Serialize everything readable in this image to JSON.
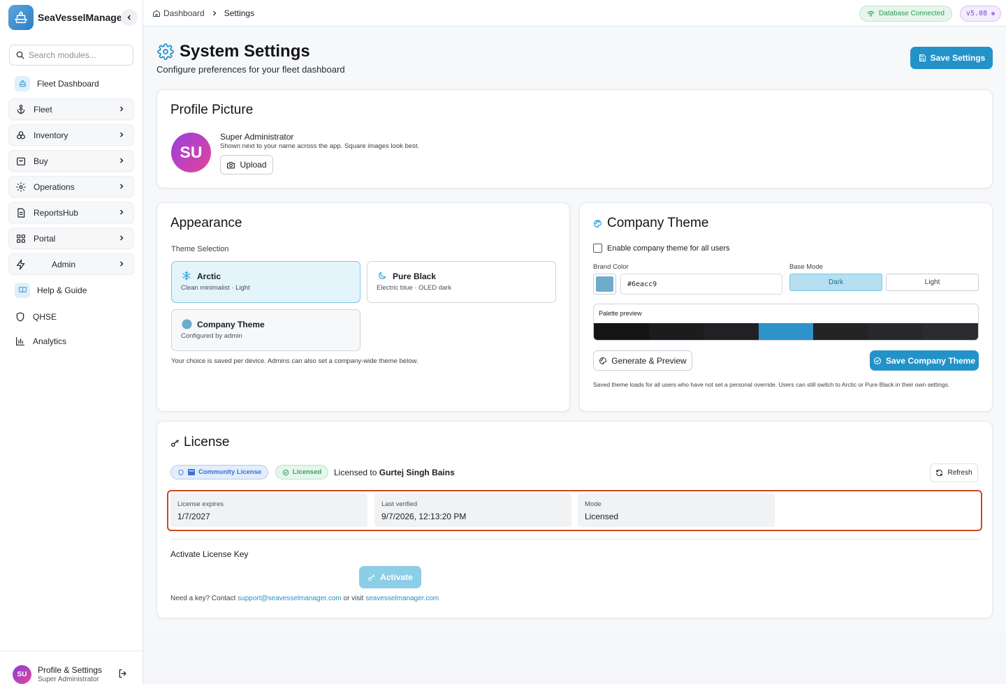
{
  "app": {
    "name": "SeaVesselManager"
  },
  "sidebar": {
    "search_placeholder": "Search modules...",
    "items": [
      {
        "label": "Fleet Dashboard"
      },
      {
        "label": "Fleet"
      },
      {
        "label": "Inventory"
      },
      {
        "label": "Buy"
      },
      {
        "label": "Operations"
      },
      {
        "label": "ReportsHub"
      },
      {
        "label": "Portal"
      },
      {
        "label": "Admin"
      },
      {
        "label": "Help & Guide"
      },
      {
        "label": "QHSE"
      },
      {
        "label": "Analytics"
      }
    ],
    "footer": {
      "avatar_initials": "SU",
      "name": "Profile & Settings",
      "role": "Super Administrator"
    }
  },
  "topbar": {
    "breadcrumb": [
      "Dashboard",
      "Settings"
    ],
    "db_status": "Database Connected",
    "version": "v5.08"
  },
  "page": {
    "title": "System Settings",
    "subtitle": "Configure preferences for your fleet dashboard",
    "save_label": "Save Settings"
  },
  "profile": {
    "title": "Profile Picture",
    "initials": "SU",
    "name": "Super Administrator",
    "hint": "Shown next to your name across the app. Square images look best.",
    "upload_label": "Upload"
  },
  "appearance": {
    "title": "Appearance",
    "theme_label": "Theme Selection",
    "options": [
      {
        "name": "Arctic",
        "desc": "Clean minimalist · Light"
      },
      {
        "name": "Pure Black",
        "desc": "Electric blue · OLED dark"
      },
      {
        "name": "Company Theme",
        "desc": "Configured by admin"
      }
    ],
    "note": "Your choice is saved per device. Admins can also set a company-wide theme below."
  },
  "company_theme": {
    "title": "Company Theme",
    "enable_label": "Enable company theme for all users",
    "brand_color_label": "Brand Color",
    "brand_color": "#6eacc9",
    "base_mode_label": "Base Mode",
    "modes": [
      "Dark",
      "Light"
    ],
    "palette_label": "Palette preview",
    "palette": [
      "#141414",
      "#1a1c1e",
      "#1f2124",
      "#2e93c9",
      "#222426",
      "#26282b",
      "#2a2c2f"
    ],
    "generate_label": "Generate & Preview",
    "save_label": "Save Company Theme",
    "note": "Saved theme loads for all users who have not set a personal override. Users can still switch to Arctic or Pure Black in their own settings."
  },
  "license": {
    "title": "License",
    "community_label": "Community License",
    "status_label": "Licensed",
    "licensed_to_prefix": "Licensed to",
    "licensee": "Gurtej Singh Bains",
    "refresh_label": "Refresh",
    "stats": [
      {
        "label": "License expires",
        "value": "1/7/2027"
      },
      {
        "label": "Last verified",
        "value": "9/7/2026, 12:13:20 PM"
      },
      {
        "label": "Mode",
        "value": "Licensed"
      }
    ],
    "activate_title": "Activate License Key",
    "activate_label": "Activate",
    "note_prefix": "Need a key? Contact",
    "email": "support@seavesselmanager.com",
    "note_mid": "or visit",
    "website": "seavesselmanager.com"
  }
}
